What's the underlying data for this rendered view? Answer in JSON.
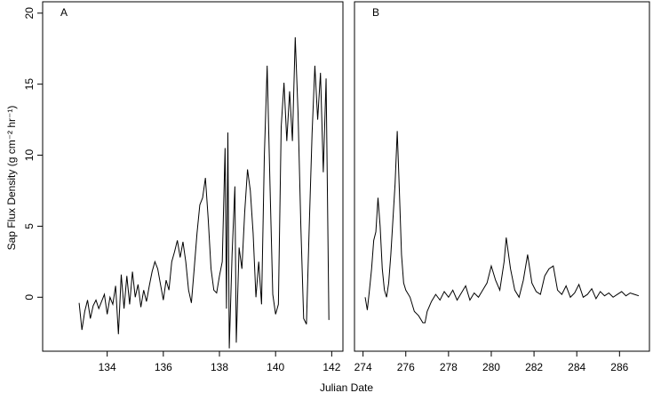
{
  "chart_data": [
    {
      "type": "line",
      "label": "A",
      "y_label": "Sap Flux Density (g cm⁻² hr⁻¹)",
      "x_label": "Julian Date",
      "x": [
        133.0,
        133.1,
        133.2,
        133.3,
        133.4,
        133.5,
        133.6,
        133.7,
        133.8,
        133.9,
        134.0,
        134.1,
        134.2,
        134.3,
        134.4,
        134.5,
        134.6,
        134.7,
        134.8,
        134.9,
        135.0,
        135.1,
        135.2,
        135.3,
        135.4,
        135.5,
        135.6,
        135.7,
        135.8,
        135.9,
        136.0,
        136.1,
        136.2,
        136.3,
        136.4,
        136.5,
        136.6,
        136.7,
        136.8,
        136.9,
        137.0,
        137.1,
        137.2,
        137.3,
        137.4,
        137.5,
        137.6,
        137.7,
        137.8,
        137.9,
        138.0,
        138.1,
        138.2,
        138.25,
        138.3,
        138.35,
        138.45,
        138.55,
        138.6,
        138.7,
        138.8,
        138.9,
        139.0,
        139.1,
        139.2,
        139.3,
        139.4,
        139.5,
        139.6,
        139.7,
        139.8,
        139.9,
        140.0,
        140.1,
        140.2,
        140.3,
        140.4,
        140.5,
        140.6,
        140.7,
        140.8,
        140.9,
        141.0,
        141.1,
        141.2,
        141.3,
        141.4,
        141.5,
        141.6,
        141.7,
        141.8,
        141.9
      ],
      "series": [
        {
          "color": "#000000",
          "values": [
            -0.4,
            -2.3,
            -1.0,
            -0.2,
            -1.5,
            -0.6,
            -0.2,
            -0.8,
            -0.3,
            0.2,
            -1.2,
            0.0,
            -0.5,
            0.8,
            -2.6,
            1.6,
            -0.8,
            1.5,
            -0.5,
            1.8,
            0.0,
            0.9,
            -0.7,
            0.5,
            -0.3,
            0.8,
            1.8,
            2.5,
            2.0,
            0.9,
            -0.2,
            1.2,
            0.5,
            2.5,
            3.2,
            4.0,
            2.8,
            3.9,
            2.5,
            0.5,
            -0.4,
            2.0,
            4.5,
            6.5,
            7.0,
            8.4,
            5.5,
            2.0,
            0.5,
            0.3,
            1.5,
            2.5,
            10.5,
            -0.8,
            11.6,
            -3.6,
            3.0,
            7.8,
            -3.2,
            3.5,
            2.0,
            6.0,
            9.0,
            7.5,
            4.5,
            0.0,
            2.5,
            -0.5,
            10.0,
            16.3,
            8.0,
            0.2,
            -1.2,
            -0.5,
            12.0,
            15.1,
            11.0,
            14.5,
            11.0,
            18.3,
            13.0,
            5.0,
            -1.5,
            -1.9,
            5.0,
            11.5,
            16.3,
            12.5,
            15.8,
            8.8,
            15.4,
            -1.6
          ]
        }
      ],
      "xlim": [
        131.7,
        142.4
      ],
      "ylim": [
        -3.8,
        20.8
      ],
      "xticks": [
        134,
        136,
        138,
        140,
        142
      ],
      "yticks": [
        0,
        5,
        10,
        15,
        20
      ]
    },
    {
      "type": "line",
      "label": "B",
      "x": [
        274.1,
        274.2,
        274.3,
        274.4,
        274.5,
        274.6,
        274.7,
        274.8,
        274.9,
        275.0,
        275.1,
        275.2,
        275.3,
        275.5,
        275.6,
        275.7,
        275.8,
        275.9,
        276.0,
        276.2,
        276.4,
        276.6,
        276.8,
        276.9,
        277.0,
        277.2,
        277.4,
        277.6,
        277.8,
        278.0,
        278.2,
        278.4,
        278.6,
        278.8,
        279.0,
        279.2,
        279.4,
        279.6,
        279.8,
        280.0,
        280.2,
        280.4,
        280.6,
        280.7,
        280.9,
        281.1,
        281.3,
        281.5,
        281.7,
        281.9,
        282.1,
        282.3,
        282.5,
        282.7,
        282.9,
        283.1,
        283.3,
        283.5,
        283.7,
        283.9,
        284.1,
        284.3,
        284.5,
        284.7,
        284.9,
        285.1,
        285.3,
        285.5,
        285.7,
        285.9,
        286.1,
        286.3,
        286.5,
        286.7,
        286.9
      ],
      "series": [
        {
          "color": "#000000",
          "values": [
            0.0,
            -0.9,
            0.5,
            2.0,
            4.0,
            4.6,
            7.0,
            5.0,
            2.0,
            0.5,
            0.0,
            1.0,
            3.0,
            8.0,
            11.7,
            7.5,
            3.0,
            1.0,
            0.5,
            0.0,
            -1.0,
            -1.3,
            -1.8,
            -1.8,
            -1.0,
            -0.3,
            0.2,
            -0.2,
            0.4,
            0.0,
            0.5,
            -0.2,
            0.3,
            0.8,
            -0.2,
            0.3,
            0.0,
            0.5,
            1.0,
            2.2,
            1.2,
            0.5,
            2.5,
            4.2,
            2.0,
            0.5,
            0.0,
            1.2,
            3.0,
            1.0,
            0.4,
            0.2,
            1.5,
            2.0,
            2.2,
            0.5,
            0.2,
            0.8,
            0.0,
            0.3,
            0.9,
            0.0,
            0.2,
            0.6,
            -0.1,
            0.4,
            0.1,
            0.3,
            0.0,
            0.2,
            0.4,
            0.1,
            0.3,
            0.2,
            0.1
          ]
        }
      ],
      "xlim": [
        273.6,
        287.4
      ],
      "ylim": [
        -3.8,
        20.8
      ],
      "xticks": [
        274,
        276,
        278,
        280,
        282,
        284,
        286
      ]
    }
  ]
}
